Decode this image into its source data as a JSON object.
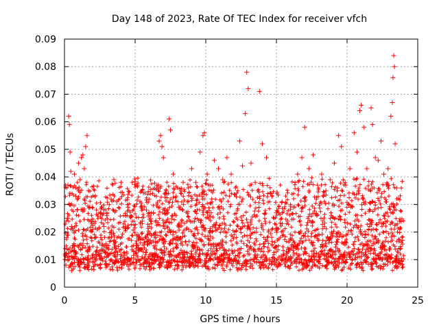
{
  "chart_data": {
    "type": "scatter",
    "title": "Day 148 of 2023, Rate Of TEC Index for receiver vfch",
    "xlabel": "GPS time / hours",
    "ylabel": "ROTI / TECUs",
    "xlim": [
      0,
      25
    ],
    "ylim": [
      0,
      0.09
    ],
    "xticks": [
      "0",
      "5",
      "10",
      "15",
      "20",
      "25"
    ],
    "yticks": [
      "0",
      "0.01",
      "0.02",
      "0.03",
      "0.04",
      "0.05",
      "0.06",
      "0.07",
      "0.08",
      "0.09"
    ],
    "grid": true,
    "marker": "+",
    "color": "#ff0000",
    "data_coverage_hours": [
      0,
      24
    ],
    "series": [
      {
        "name": "ROTI",
        "points": [
          [
            0.05,
            0.012
          ],
          [
            0.15,
            0.018
          ],
          [
            0.2,
            0.025
          ],
          [
            0.25,
            0.037
          ],
          [
            0.3,
            0.062
          ],
          [
            0.35,
            0.059
          ],
          [
            0.4,
            0.049
          ],
          [
            0.45,
            0.042
          ],
          [
            0.5,
            0.022
          ],
          [
            0.6,
            0.015
          ],
          [
            0.7,
            0.041
          ],
          [
            0.8,
            0.033
          ],
          [
            0.9,
            0.028
          ],
          [
            1.0,
            0.045
          ],
          [
            1.1,
            0.039
          ],
          [
            1.2,
            0.047
          ],
          [
            1.3,
            0.048
          ],
          [
            1.4,
            0.043
          ],
          [
            1.5,
            0.051
          ],
          [
            1.6,
            0.055
          ],
          [
            1.7,
            0.035
          ],
          [
            1.8,
            0.029
          ],
          [
            1.9,
            0.024
          ],
          [
            2.0,
            0.021
          ],
          [
            2.2,
            0.018
          ],
          [
            2.5,
            0.016
          ],
          [
            2.8,
            0.022
          ],
          [
            3.0,
            0.027
          ],
          [
            3.3,
            0.032
          ],
          [
            3.5,
            0.039
          ],
          [
            3.7,
            0.031
          ],
          [
            4.0,
            0.038
          ],
          [
            4.3,
            0.022
          ],
          [
            4.5,
            0.029
          ],
          [
            4.8,
            0.038
          ],
          [
            5.2,
            0.019
          ],
          [
            5.5,
            0.024
          ],
          [
            5.8,
            0.028
          ],
          [
            6.0,
            0.022
          ],
          [
            6.3,
            0.027
          ],
          [
            6.5,
            0.033
          ],
          [
            6.7,
            0.053
          ],
          [
            6.8,
            0.055
          ],
          [
            6.9,
            0.051
          ],
          [
            7.0,
            0.047
          ],
          [
            7.2,
            0.035
          ],
          [
            7.4,
            0.061
          ],
          [
            7.5,
            0.057
          ],
          [
            7.7,
            0.041
          ],
          [
            7.9,
            0.033
          ],
          [
            8.1,
            0.029
          ],
          [
            8.4,
            0.038
          ],
          [
            8.7,
            0.031
          ],
          [
            9.0,
            0.043
          ],
          [
            9.3,
            0.038
          ],
          [
            9.6,
            0.049
          ],
          [
            9.8,
            0.055
          ],
          [
            9.9,
            0.056
          ],
          [
            10.1,
            0.041
          ],
          [
            10.3,
            0.037
          ],
          [
            10.6,
            0.046
          ],
          [
            10.9,
            0.043
          ],
          [
            11.2,
            0.039
          ],
          [
            11.5,
            0.047
          ],
          [
            11.8,
            0.041
          ],
          [
            12.1,
            0.036
          ],
          [
            12.4,
            0.053
          ],
          [
            12.6,
            0.044
          ],
          [
            12.8,
            0.063
          ],
          [
            12.9,
            0.078
          ],
          [
            13.0,
            0.072
          ],
          [
            13.2,
            0.045
          ],
          [
            13.5,
            0.038
          ],
          [
            13.8,
            0.071
          ],
          [
            14.0,
            0.052
          ],
          [
            14.3,
            0.047
          ],
          [
            14.6,
            0.034
          ],
          [
            15.0,
            0.027
          ],
          [
            15.4,
            0.031
          ],
          [
            15.8,
            0.024
          ],
          [
            16.2,
            0.029
          ],
          [
            16.5,
            0.041
          ],
          [
            16.8,
            0.047
          ],
          [
            17.0,
            0.058
          ],
          [
            17.3,
            0.043
          ],
          [
            17.6,
            0.048
          ],
          [
            17.9,
            0.037
          ],
          [
            18.2,
            0.041
          ],
          [
            18.5,
            0.035
          ],
          [
            18.8,
            0.039
          ],
          [
            19.1,
            0.045
          ],
          [
            19.4,
            0.055
          ],
          [
            19.6,
            0.051
          ],
          [
            19.9,
            0.037
          ],
          [
            20.2,
            0.043
          ],
          [
            20.5,
            0.056
          ],
          [
            20.7,
            0.049
          ],
          [
            20.9,
            0.064
          ],
          [
            21.0,
            0.066
          ],
          [
            21.2,
            0.058
          ],
          [
            21.4,
            0.043
          ],
          [
            21.7,
            0.065
          ],
          [
            21.8,
            0.059
          ],
          [
            22.0,
            0.047
          ],
          [
            22.2,
            0.046
          ],
          [
            22.4,
            0.053
          ],
          [
            22.6,
            0.041
          ],
          [
            22.9,
            0.043
          ],
          [
            23.1,
            0.062
          ],
          [
            23.2,
            0.067
          ],
          [
            23.25,
            0.076
          ],
          [
            23.3,
            0.084
          ],
          [
            23.35,
            0.08
          ],
          [
            23.4,
            0.052
          ],
          [
            23.5,
            0.036
          ],
          [
            23.7,
            0.024
          ],
          [
            23.9,
            0.017
          ],
          [
            0.1,
            0.008
          ],
          [
            0.5,
            0.006
          ],
          [
            1.0,
            0.01
          ],
          [
            1.5,
            0.007
          ],
          [
            2.0,
            0.009
          ],
          [
            2.5,
            0.011
          ],
          [
            3.0,
            0.008
          ],
          [
            3.5,
            0.012
          ],
          [
            4.0,
            0.009
          ],
          [
            4.5,
            0.01
          ],
          [
            5.0,
            0.008
          ],
          [
            5.5,
            0.011
          ],
          [
            6.0,
            0.009
          ],
          [
            6.5,
            0.012
          ],
          [
            7.0,
            0.01
          ],
          [
            7.5,
            0.013
          ],
          [
            8.0,
            0.009
          ],
          [
            8.5,
            0.011
          ],
          [
            9.0,
            0.012
          ],
          [
            9.5,
            0.01
          ],
          [
            10.0,
            0.009
          ],
          [
            10.5,
            0.013
          ],
          [
            11.0,
            0.011
          ],
          [
            11.5,
            0.012
          ],
          [
            12.0,
            0.01
          ],
          [
            12.5,
            0.014
          ],
          [
            13.0,
            0.012
          ],
          [
            13.5,
            0.011
          ],
          [
            14.0,
            0.009
          ],
          [
            14.5,
            0.01
          ],
          [
            15.0,
            0.008
          ],
          [
            15.5,
            0.012
          ],
          [
            16.0,
            0.011
          ],
          [
            16.5,
            0.01
          ],
          [
            17.0,
            0.013
          ],
          [
            17.5,
            0.011
          ],
          [
            18.0,
            0.012
          ],
          [
            18.5,
            0.01
          ],
          [
            19.0,
            0.013
          ],
          [
            19.5,
            0.011
          ],
          [
            20.0,
            0.012
          ],
          [
            20.5,
            0.014
          ],
          [
            21.0,
            0.011
          ],
          [
            21.5,
            0.013
          ],
          [
            22.0,
            0.012
          ],
          [
            22.5,
            0.01
          ],
          [
            23.0,
            0.011
          ],
          [
            23.5,
            0.009
          ],
          [
            23.9,
            0.008
          ]
        ]
      }
    ]
  }
}
